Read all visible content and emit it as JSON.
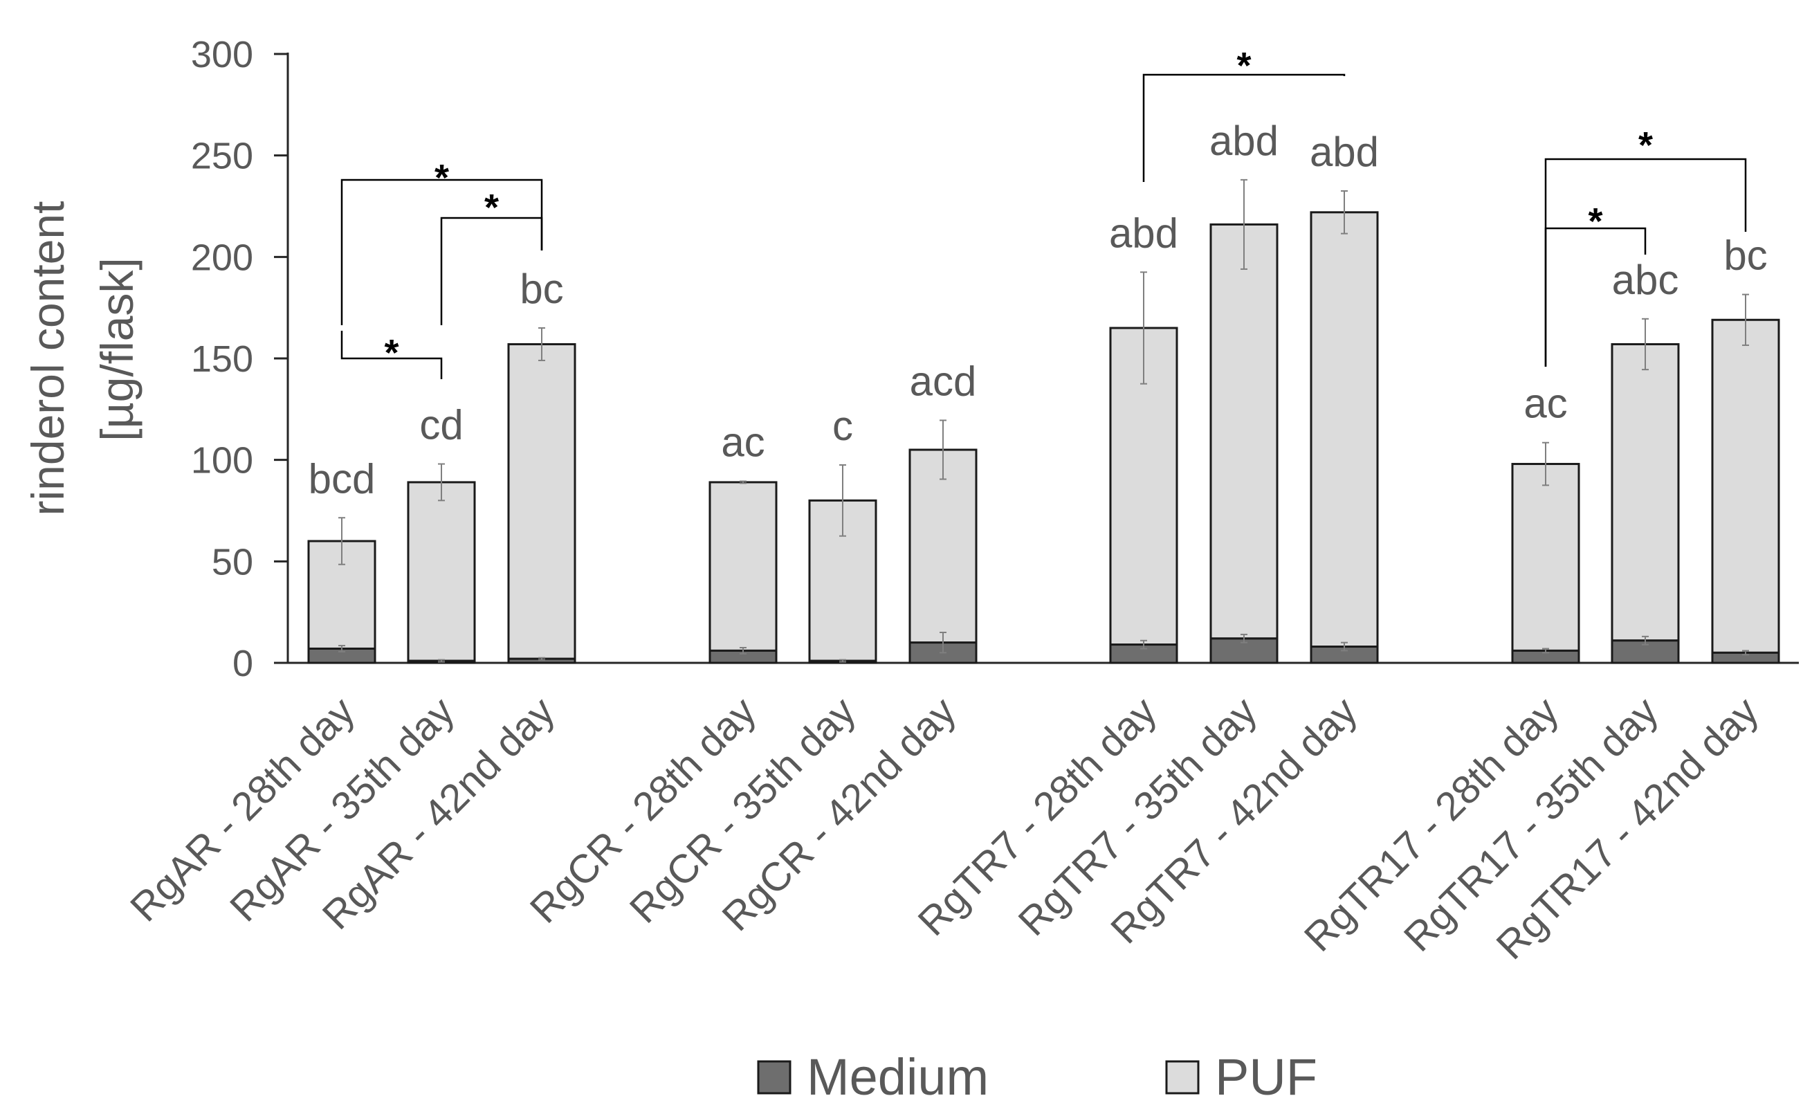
{
  "chart_data": {
    "type": "bar",
    "stacked": true,
    "ylabel": [
      "rinderol content",
      "[µg/flask]"
    ],
    "ylim": [
      0,
      300
    ],
    "yticks": [
      0,
      50,
      100,
      150,
      200,
      250,
      300
    ],
    "grid": false,
    "legend_position": "bottom-center",
    "categories": [
      "RgAR -  28th day",
      "RgAR - 35th day",
      "RgAR -  42nd day",
      "RgCR -  28th day",
      "RgCR - 35th day",
      "RgCR - 42nd day",
      "RgTR7 - 28th day",
      "RgTR7 - 35th day",
      "RgTR7 - 42nd day",
      "RgTR17 - 28th day",
      "RgTR17 - 35th day",
      "RgTR17 - 42nd day"
    ],
    "series": [
      {
        "name": "Medium",
        "color": "#6e6e6e",
        "values": [
          7,
          1,
          2,
          6,
          1,
          10,
          9,
          12,
          8,
          6,
          11,
          5
        ],
        "errors": [
          1.5,
          0.5,
          0.5,
          1.5,
          0.5,
          5,
          2,
          2,
          2,
          1,
          2,
          1
        ]
      },
      {
        "name": "PUF",
        "color": "#dcdcdc",
        "values": [
          53,
          88,
          155,
          83,
          79,
          95,
          156,
          204,
          214,
          92,
          146,
          164
        ],
        "errors": [
          11.5,
          9,
          8,
          0.5,
          17.5,
          14.5,
          27.5,
          22,
          10.5,
          10.5,
          12.5,
          12.5
        ]
      }
    ],
    "letters": [
      "bcd",
      "cd",
      "bc",
      "ac",
      "c",
      "acd",
      "abd",
      "abd",
      "abd",
      "ac",
      "abc",
      "bc"
    ],
    "significance": [
      {
        "from": 0,
        "to": 1,
        "label": "*"
      },
      {
        "from": 1,
        "to": 2,
        "label": "*"
      },
      {
        "from": 0,
        "to": 2,
        "label": "*"
      },
      {
        "from": 6,
        "to": 8,
        "label": "*"
      },
      {
        "from": 9,
        "to": 10,
        "label": "*"
      },
      {
        "from": 9,
        "to": 11,
        "label": "*"
      }
    ]
  }
}
